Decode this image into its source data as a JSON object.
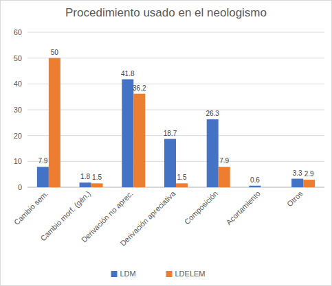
{
  "chart_data": {
    "type": "bar",
    "title": "Procedimiento usado en el neologismo",
    "categories": [
      "Cambio sem.",
      "Cambio morf. (gén.)",
      "Derivación no aprec.",
      "Derivación apreciativa",
      "Composición",
      "Acortamiento",
      "Otros"
    ],
    "series": [
      {
        "name": "LDM",
        "color": "#4472c4",
        "values": [
          7.9,
          1.8,
          41.8,
          18.7,
          26.3,
          0.6,
          3.3
        ]
      },
      {
        "name": "LDELEM",
        "color": "#ed7d31",
        "values": [
          50,
          1.5,
          36.2,
          1.5,
          7.9,
          null,
          2.9
        ]
      }
    ],
    "ylim": [
      0,
      60
    ],
    "yticks": [
      0,
      10,
      20,
      30,
      40,
      50,
      60
    ],
    "grid": true,
    "legend": "bottom",
    "data_labels": true
  }
}
